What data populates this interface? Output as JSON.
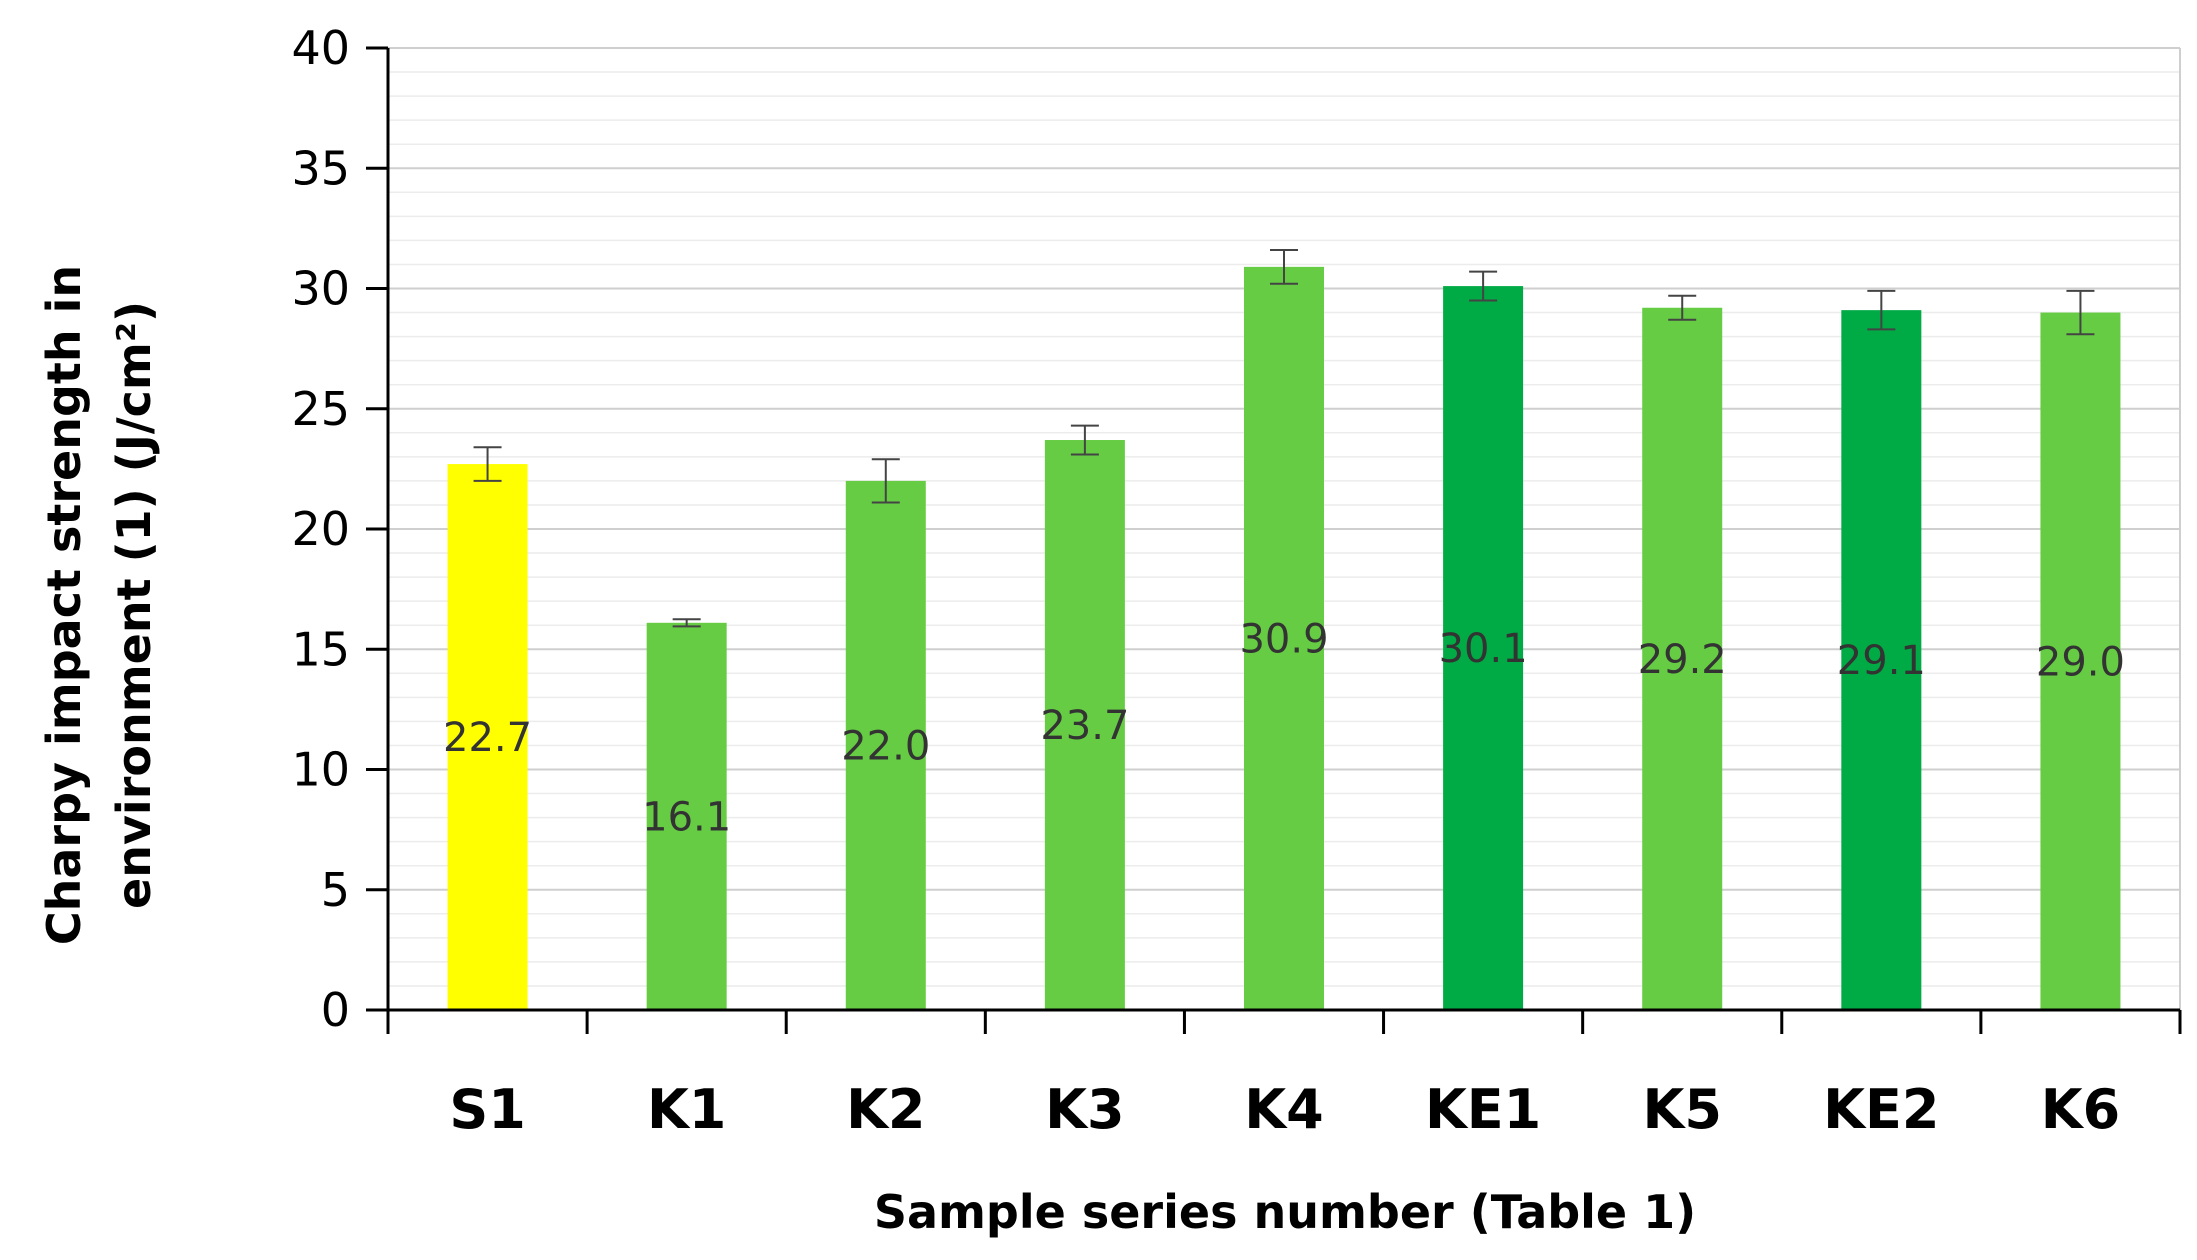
{
  "chart_data": {
    "type": "bar",
    "title": "",
    "xlabel": "Sample series  number (Table 1)",
    "ylabel_line1": "Charpy impact strength in",
    "ylabel_line2": "environment (1) (J/cm²)",
    "ylim": [
      0,
      40
    ],
    "yticks": [
      0,
      5,
      10,
      15,
      20,
      25,
      30,
      35,
      40
    ],
    "grid": "horizontal",
    "categories": [
      "S1",
      "K1",
      "K2",
      "K3",
      "K4",
      "KE1",
      "K5",
      "KE2",
      "K6"
    ],
    "values": [
      22.7,
      16.1,
      22.0,
      23.7,
      30.9,
      30.1,
      29.2,
      29.1,
      29.0
    ],
    "errors": [
      0.7,
      0.15,
      0.9,
      0.6,
      0.7,
      0.6,
      0.5,
      0.8,
      0.9
    ],
    "value_labels": [
      "22.7",
      "16.1",
      "22.0",
      "23.7",
      "30.9",
      "30.1",
      "29.2",
      "29.1",
      "29.0"
    ],
    "bar_colors": [
      "#ffff00",
      "#66cc44",
      "#66cc44",
      "#66cc44",
      "#66cc44",
      "#00aa44",
      "#66cc44",
      "#00aa44",
      "#66cc44"
    ]
  }
}
